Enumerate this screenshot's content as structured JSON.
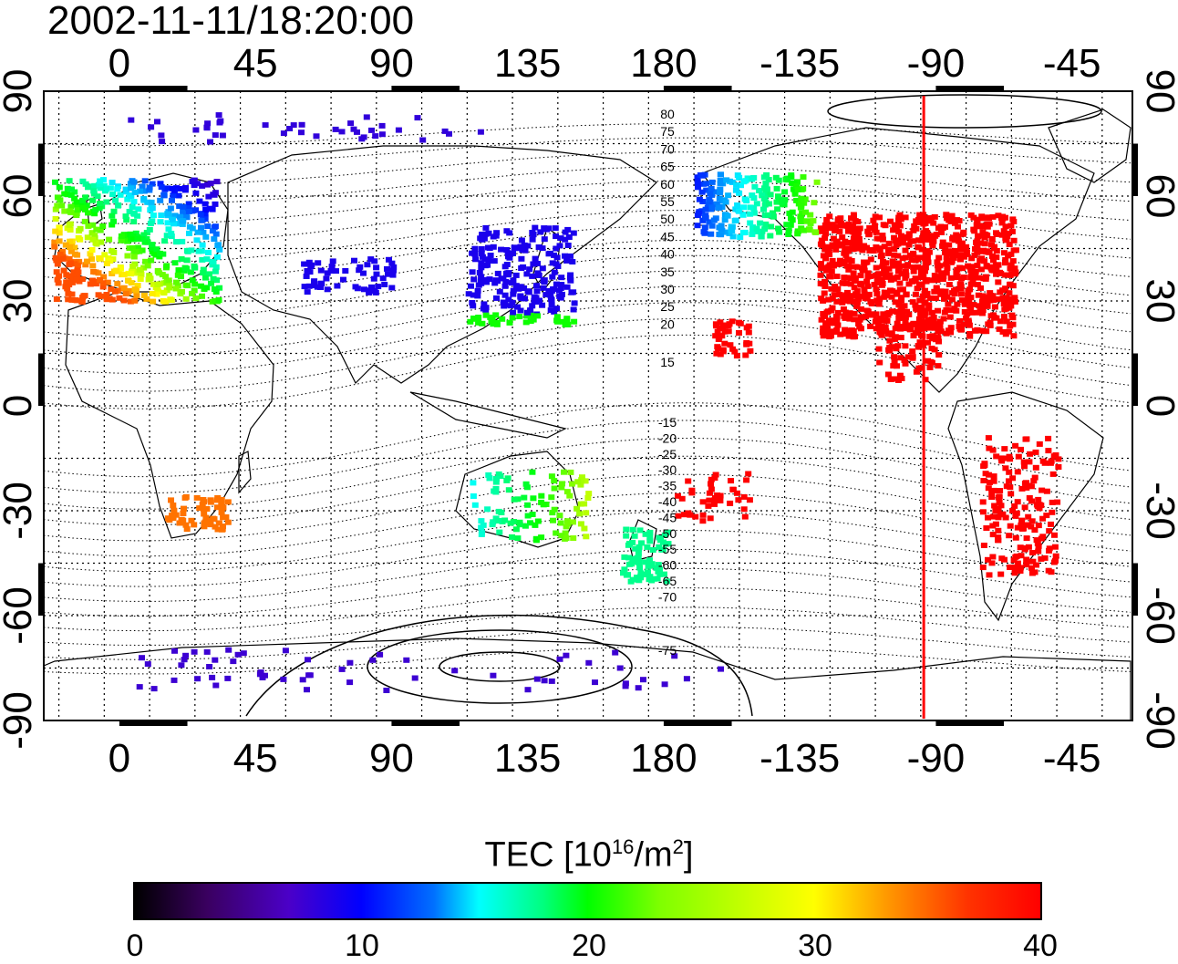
{
  "title": "2002-11-11/18:20:00",
  "map": {
    "top_lon_labels": [
      "0",
      "45",
      "90",
      "135",
      "180",
      "-135",
      "-90",
      "-45"
    ],
    "bottom_lon_labels": [
      "0",
      "45",
      "90",
      "135",
      "180",
      "-135",
      "-90",
      "-45"
    ],
    "left_lat_labels": [
      "90",
      "60",
      "30",
      "0",
      "-30",
      "-60",
      "-90"
    ],
    "right_lat_labels": [
      "90",
      "60",
      "30",
      "0",
      "-30",
      "-60",
      "-90"
    ],
    "north_contour_labels": [
      "80",
      "75",
      "70",
      "65",
      "60",
      "55",
      "50",
      "45",
      "40",
      "35",
      "30",
      "25",
      "20",
      "15"
    ],
    "south_contour_labels": [
      "-15",
      "-20",
      "-25",
      "-30",
      "-35",
      "-40",
      "-45",
      "-50",
      "-55",
      "-60",
      "-65",
      "-70",
      "-75"
    ],
    "terminator_line_color": "#ff0000",
    "terminator_longitude": -94
  },
  "colorbar": {
    "title_main": "TEC  [10",
    "title_exp1": "16",
    "title_mid": "/m",
    "title_exp2": "2",
    "title_end": "]",
    "min": 0,
    "max": 40,
    "ticks": [
      "0",
      "10",
      "20",
      "30",
      "40"
    ],
    "colormap": [
      "#000000",
      "#4b00c8",
      "#0000ff",
      "#00ffff",
      "#00ff00",
      "#ffff00",
      "#ff0000"
    ]
  }
}
